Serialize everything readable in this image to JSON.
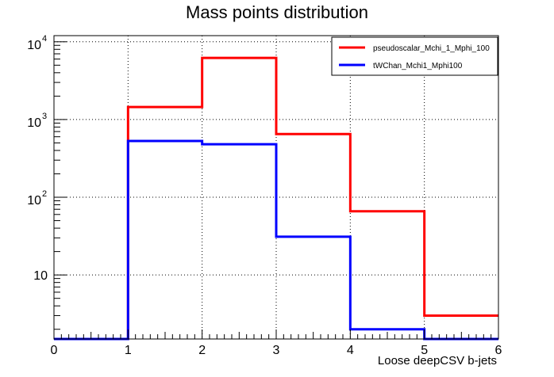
{
  "chart_data": {
    "type": "step",
    "title": "Mass points distribution",
    "xlabel": "Loose deepCSV b-jets",
    "ylabel": "",
    "xlim": [
      0,
      6
    ],
    "ylim": [
      1.5,
      12000
    ],
    "yscale": "log",
    "grid": true,
    "legend_position": "top-right",
    "x_edges": [
      0,
      1,
      2,
      3,
      4,
      5,
      6
    ],
    "x_ticks": [
      "0",
      "1",
      "2",
      "3",
      "4",
      "5",
      "6"
    ],
    "y_ticks": [
      {
        "value": 10,
        "base": "10",
        "exp": ""
      },
      {
        "value": 100,
        "base": "10",
        "exp": "2"
      },
      {
        "value": 1000,
        "base": "10",
        "exp": "3"
      },
      {
        "value": 10000,
        "base": "10",
        "exp": "4"
      }
    ],
    "series": [
      {
        "name": "pseudoscalar_Mchi_1_Mphi_100",
        "color": "#ff0000",
        "values": [
          0,
          1450,
          6200,
          650,
          66,
          3
        ]
      },
      {
        "name": "tWChan_Mchi1_Mphi100",
        "color": "#0000ff",
        "values": [
          0,
          530,
          480,
          31,
          2,
          1.5
        ]
      }
    ]
  }
}
